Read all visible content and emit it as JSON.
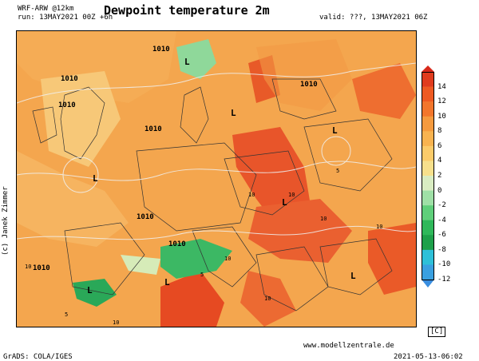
{
  "header": {
    "model": "WRF-ARW @12km",
    "run": "run: 13MAY2021 00Z +6h",
    "title": "Dewpoint temperature 2m",
    "valid": "valid: ???, 13MAY2021 06Z"
  },
  "map": {
    "isobar_labels": [
      "1010",
      "1010",
      "1010",
      "1010",
      "1010",
      "1010",
      "1010",
      "1010"
    ],
    "pressure_centers": [
      "L",
      "L",
      "L",
      "L",
      "L",
      "L",
      "L",
      "L"
    ],
    "contour_labels": [
      "10",
      "10",
      "10",
      "5",
      "5",
      "10",
      "10",
      "10",
      "5",
      "10",
      "10"
    ]
  },
  "legend": {
    "ticks": [
      "14",
      "12",
      "10",
      "8",
      "6",
      "4",
      "2",
      "0",
      "-2",
      "-4",
      "-6",
      "-8",
      "-10",
      "-12"
    ],
    "colors": [
      "#e03c1e",
      "#ee5a22",
      "#f2762c",
      "#f59a3e",
      "#f8b350",
      "#fbcb6a",
      "#f7e08c",
      "#d9ecc2",
      "#9fe0a6",
      "#5fcf7a",
      "#2fb85a",
      "#1ea04a",
      "#2ec0d8",
      "#3aa0e0"
    ],
    "unit": "[C]"
  },
  "footer": {
    "credit": "(c) Janek Zimmer",
    "website": "www.modellzentrale.de",
    "grads": "GrADS: COLA/IGES",
    "timestamp": "2021-05-13-06:02"
  }
}
